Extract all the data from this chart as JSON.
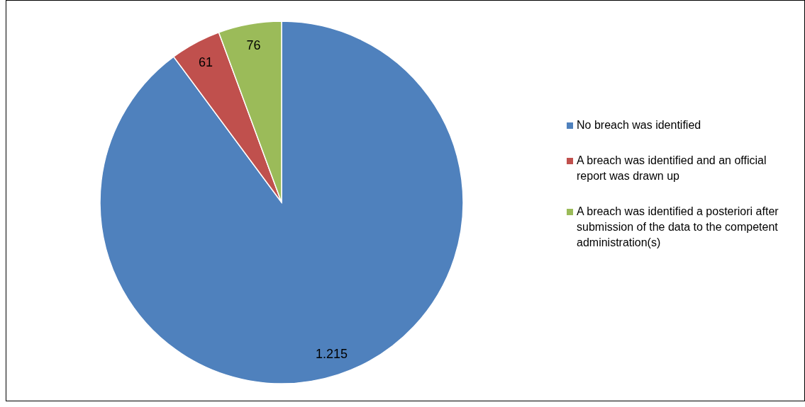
{
  "chart_data": {
    "type": "pie",
    "categories": [
      "No breach was identified",
      "A breach was identified and an official report was drawn up",
      "A breach was identified a posteriori after submission of the data to the competent administration(s)"
    ],
    "values": [
      1215,
      61,
      76
    ],
    "value_labels": [
      "1.215",
      "61",
      "76"
    ],
    "colors": [
      "#4f81bd",
      "#c0504d",
      "#9bbb59"
    ],
    "legend": "right"
  }
}
